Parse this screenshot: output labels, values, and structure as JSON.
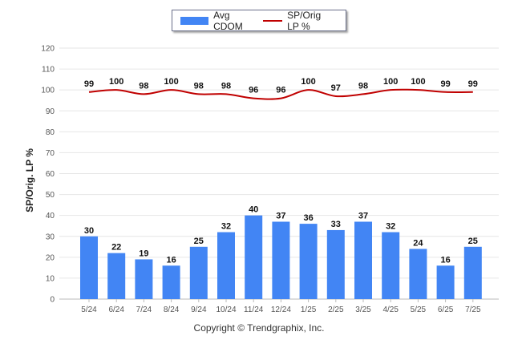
{
  "chart_data": {
    "type": "bar",
    "categories": [
      "5/24",
      "6/24",
      "7/24",
      "8/24",
      "9/24",
      "10/24",
      "11/24",
      "12/24",
      "1/25",
      "2/25",
      "3/25",
      "4/25",
      "5/25",
      "6/25",
      "7/25"
    ],
    "series": [
      {
        "name": "Avg CDOM",
        "type": "bar",
        "color": "#4285f4",
        "values": [
          30,
          22,
          19,
          16,
          25,
          32,
          40,
          37,
          36,
          33,
          37,
          32,
          24,
          16,
          25
        ]
      },
      {
        "name": "SP/Orig LP %",
        "type": "line",
        "color": "#c00000",
        "values": [
          99,
          100,
          98,
          100,
          98,
          98,
          96,
          96,
          100,
          97,
          98,
          100,
          100,
          99,
          99
        ]
      }
    ],
    "ylabel": "SP/Orig. LP %",
    "ylim": [
      0,
      120
    ],
    "yticks": [
      0,
      10,
      20,
      30,
      40,
      50,
      60,
      70,
      80,
      90,
      100,
      110,
      120
    ],
    "grid": true,
    "legend_position": "top-center"
  },
  "footer": {
    "copyright": "Copyright © Trendgraphix, Inc."
  }
}
